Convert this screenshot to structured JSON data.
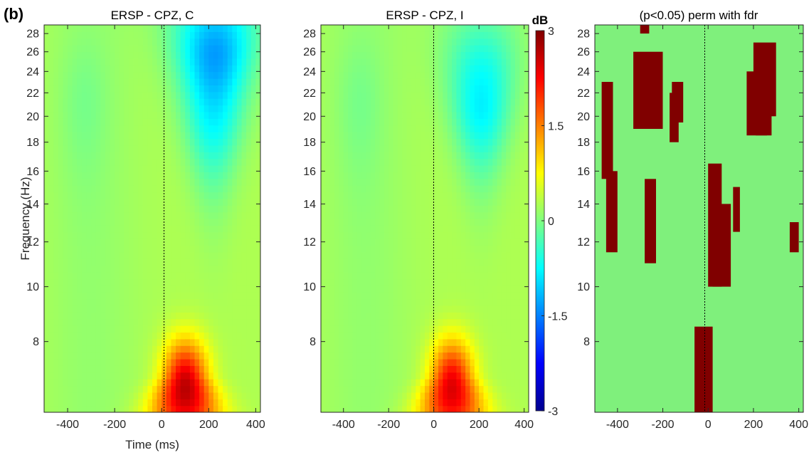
{
  "panel_label": "(b)",
  "colors": {
    "mask_significant": "#800000",
    "mask_background": "#7ff07c",
    "colormap": "jet"
  },
  "chart_data": [
    {
      "type": "heatmap",
      "title": "ERSP - CPZ, C",
      "xlabel": "Time (ms)",
      "ylabel": "Frequency (Hz)",
      "xlim": [
        -500,
        420
      ],
      "ylim_hz": [
        6,
        29
      ],
      "yscale": "log",
      "xticks": [
        -400,
        -200,
        0,
        200,
        400
      ],
      "yticks": [
        8,
        10,
        12,
        14,
        16,
        18,
        20,
        22,
        24,
        26,
        28
      ],
      "event_line_x": 0,
      "grid": false,
      "features": [
        {
          "kind": "synchronization",
          "t_center_ms": 100,
          "f_center_hz": 6.6,
          "peak_db": 2.4
        },
        {
          "kind": "desynchronization",
          "t_center_ms": 220,
          "f_center_hz": 20,
          "peak_db": -1.7
        },
        {
          "kind": "desynchronization",
          "t_center_ms": 230,
          "f_center_hz": 27,
          "peak_db": -1.9
        }
      ]
    },
    {
      "type": "heatmap",
      "title": "ERSP - CPZ, I",
      "xlim": [
        -500,
        420
      ],
      "ylim_hz": [
        6,
        29
      ],
      "yscale": "log",
      "xticks": [
        -400,
        -200,
        0,
        200,
        400
      ],
      "yticks": [
        8,
        10,
        12,
        14,
        16,
        18,
        20,
        22,
        24,
        26,
        28
      ],
      "event_line_x": 0,
      "grid": false,
      "colorbar": {
        "label": "dB",
        "range": [
          -3,
          3
        ],
        "ticks": [
          "3",
          "1.5",
          "0",
          "-1.5",
          "-3"
        ]
      },
      "features": [
        {
          "kind": "synchronization",
          "t_center_ms": 80,
          "f_center_hz": 6.6,
          "peak_db": 2.2
        },
        {
          "kind": "desynchronization",
          "t_center_ms": 210,
          "f_center_hz": 21,
          "peak_db": -2.0
        }
      ]
    },
    {
      "type": "heatmap",
      "title": "(p<0.05) perm with fdr",
      "xlim": [
        -500,
        420
      ],
      "ylim_hz": [
        6,
        29
      ],
      "yscale": "log",
      "xticks": [
        -400,
        -200,
        0,
        200,
        400
      ],
      "yticks": [
        8,
        10,
        12,
        14,
        16,
        18,
        20,
        22,
        24,
        26,
        28
      ],
      "event_line_x": 0,
      "grid": false,
      "significant_regions": [
        {
          "t_range_ms": [
            -470,
            -420
          ],
          "f_range_hz": [
            15.5,
            23
          ]
        },
        {
          "t_range_ms": [
            -330,
            -200
          ],
          "f_range_hz": [
            19,
            26
          ]
        },
        {
          "t_range_ms": [
            -170,
            -130
          ],
          "f_range_hz": [
            18,
            22
          ]
        },
        {
          "t_range_ms": [
            -160,
            -110
          ],
          "f_range_hz": [
            19.5,
            23
          ]
        },
        {
          "t_range_ms": [
            -450,
            -400
          ],
          "f_range_hz": [
            11.5,
            16
          ]
        },
        {
          "t_range_ms": [
            -280,
            -230
          ],
          "f_range_hz": [
            11,
            15.5
          ]
        },
        {
          "t_range_ms": [
            0,
            60
          ],
          "f_range_hz": [
            10,
            16.5
          ]
        },
        {
          "t_range_ms": [
            20,
            100
          ],
          "f_range_hz": [
            10,
            14
          ]
        },
        {
          "t_range_ms": [
            -60,
            20
          ],
          "f_range_hz": [
            6,
            8.5
          ]
        },
        {
          "t_range_ms": [
            170,
            280
          ],
          "f_range_hz": [
            18.5,
            24
          ]
        },
        {
          "t_range_ms": [
            200,
            300
          ],
          "f_range_hz": [
            20,
            27
          ]
        },
        {
          "t_range_ms": [
            110,
            140
          ],
          "f_range_hz": [
            12.5,
            15
          ]
        },
        {
          "t_range_ms": [
            210,
            260
          ],
          "f_range_hz": [
            18.5,
            23
          ]
        },
        {
          "t_range_ms": [
            -300,
            -260
          ],
          "f_range_hz": [
            28,
            29
          ]
        },
        {
          "t_range_ms": [
            360,
            400
          ],
          "f_range_hz": [
            11.5,
            13
          ]
        }
      ]
    }
  ]
}
